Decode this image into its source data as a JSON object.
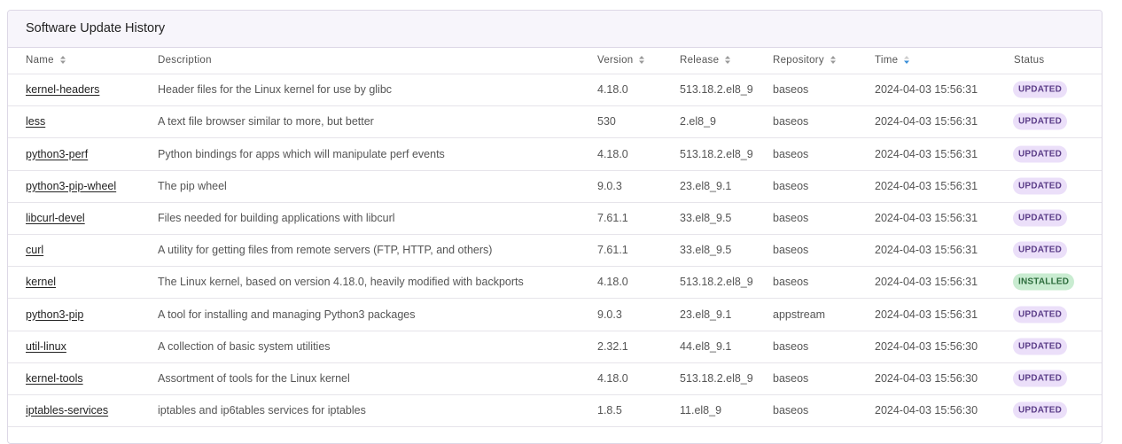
{
  "header": {
    "title": "Software Update History"
  },
  "table": {
    "columns": [
      "Name",
      "Description",
      "Version",
      "Release",
      "Repository",
      "Time",
      "Status"
    ],
    "sortable_columns": [
      0,
      2,
      3,
      4,
      5
    ],
    "sorted_column": 5,
    "sort_direction": "descending",
    "rows": [
      {
        "name": "kernel-headers",
        "description": "Header files for the Linux kernel for use by glibc",
        "version": "4.18.0",
        "release": "513.18.2.el8_9",
        "repository": "baseos",
        "time": "2024-04-03 15:56:31",
        "status": "UPDATED"
      },
      {
        "name": "less",
        "description": "A text file browser similar to more, but better",
        "version": "530",
        "release": "2.el8_9",
        "repository": "baseos",
        "time": "2024-04-03 15:56:31",
        "status": "UPDATED"
      },
      {
        "name": "python3-perf",
        "description": "Python bindings for apps which will manipulate perf events",
        "version": "4.18.0",
        "release": "513.18.2.el8_9",
        "repository": "baseos",
        "time": "2024-04-03 15:56:31",
        "status": "UPDATED"
      },
      {
        "name": "python3-pip-wheel",
        "description": "The pip wheel",
        "version": "9.0.3",
        "release": "23.el8_9.1",
        "repository": "baseos",
        "time": "2024-04-03 15:56:31",
        "status": "UPDATED"
      },
      {
        "name": "libcurl-devel",
        "description": "Files needed for building applications with libcurl",
        "version": "7.61.1",
        "release": "33.el8_9.5",
        "repository": "baseos",
        "time": "2024-04-03 15:56:31",
        "status": "UPDATED"
      },
      {
        "name": "curl",
        "description": "A utility for getting files from remote servers (FTP, HTTP, and others)",
        "version": "7.61.1",
        "release": "33.el8_9.5",
        "repository": "baseos",
        "time": "2024-04-03 15:56:31",
        "status": "UPDATED"
      },
      {
        "name": "kernel",
        "description": "The Linux kernel, based on version 4.18.0, heavily modified with backports",
        "version": "4.18.0",
        "release": "513.18.2.el8_9",
        "repository": "baseos",
        "time": "2024-04-03 15:56:31",
        "status": "INSTALLED"
      },
      {
        "name": "python3-pip",
        "description": "A tool for installing and managing Python3 packages",
        "version": "9.0.3",
        "release": "23.el8_9.1",
        "repository": "appstream",
        "time": "2024-04-03 15:56:31",
        "status": "UPDATED"
      },
      {
        "name": "util-linux",
        "description": "A collection of basic system utilities",
        "version": "2.32.1",
        "release": "44.el8_9.1",
        "repository": "baseos",
        "time": "2024-04-03 15:56:30",
        "status": "UPDATED"
      },
      {
        "name": "kernel-tools",
        "description": "Assortment of tools for the Linux kernel",
        "version": "4.18.0",
        "release": "513.18.2.el8_9",
        "repository": "baseos",
        "time": "2024-04-03 15:56:30",
        "status": "UPDATED"
      },
      {
        "name": "iptables-services",
        "description": "iptables and ip6tables services for iptables",
        "version": "1.8.5",
        "release": "11.el8_9",
        "repository": "baseos",
        "time": "2024-04-03 15:56:30",
        "status": "UPDATED"
      }
    ]
  }
}
